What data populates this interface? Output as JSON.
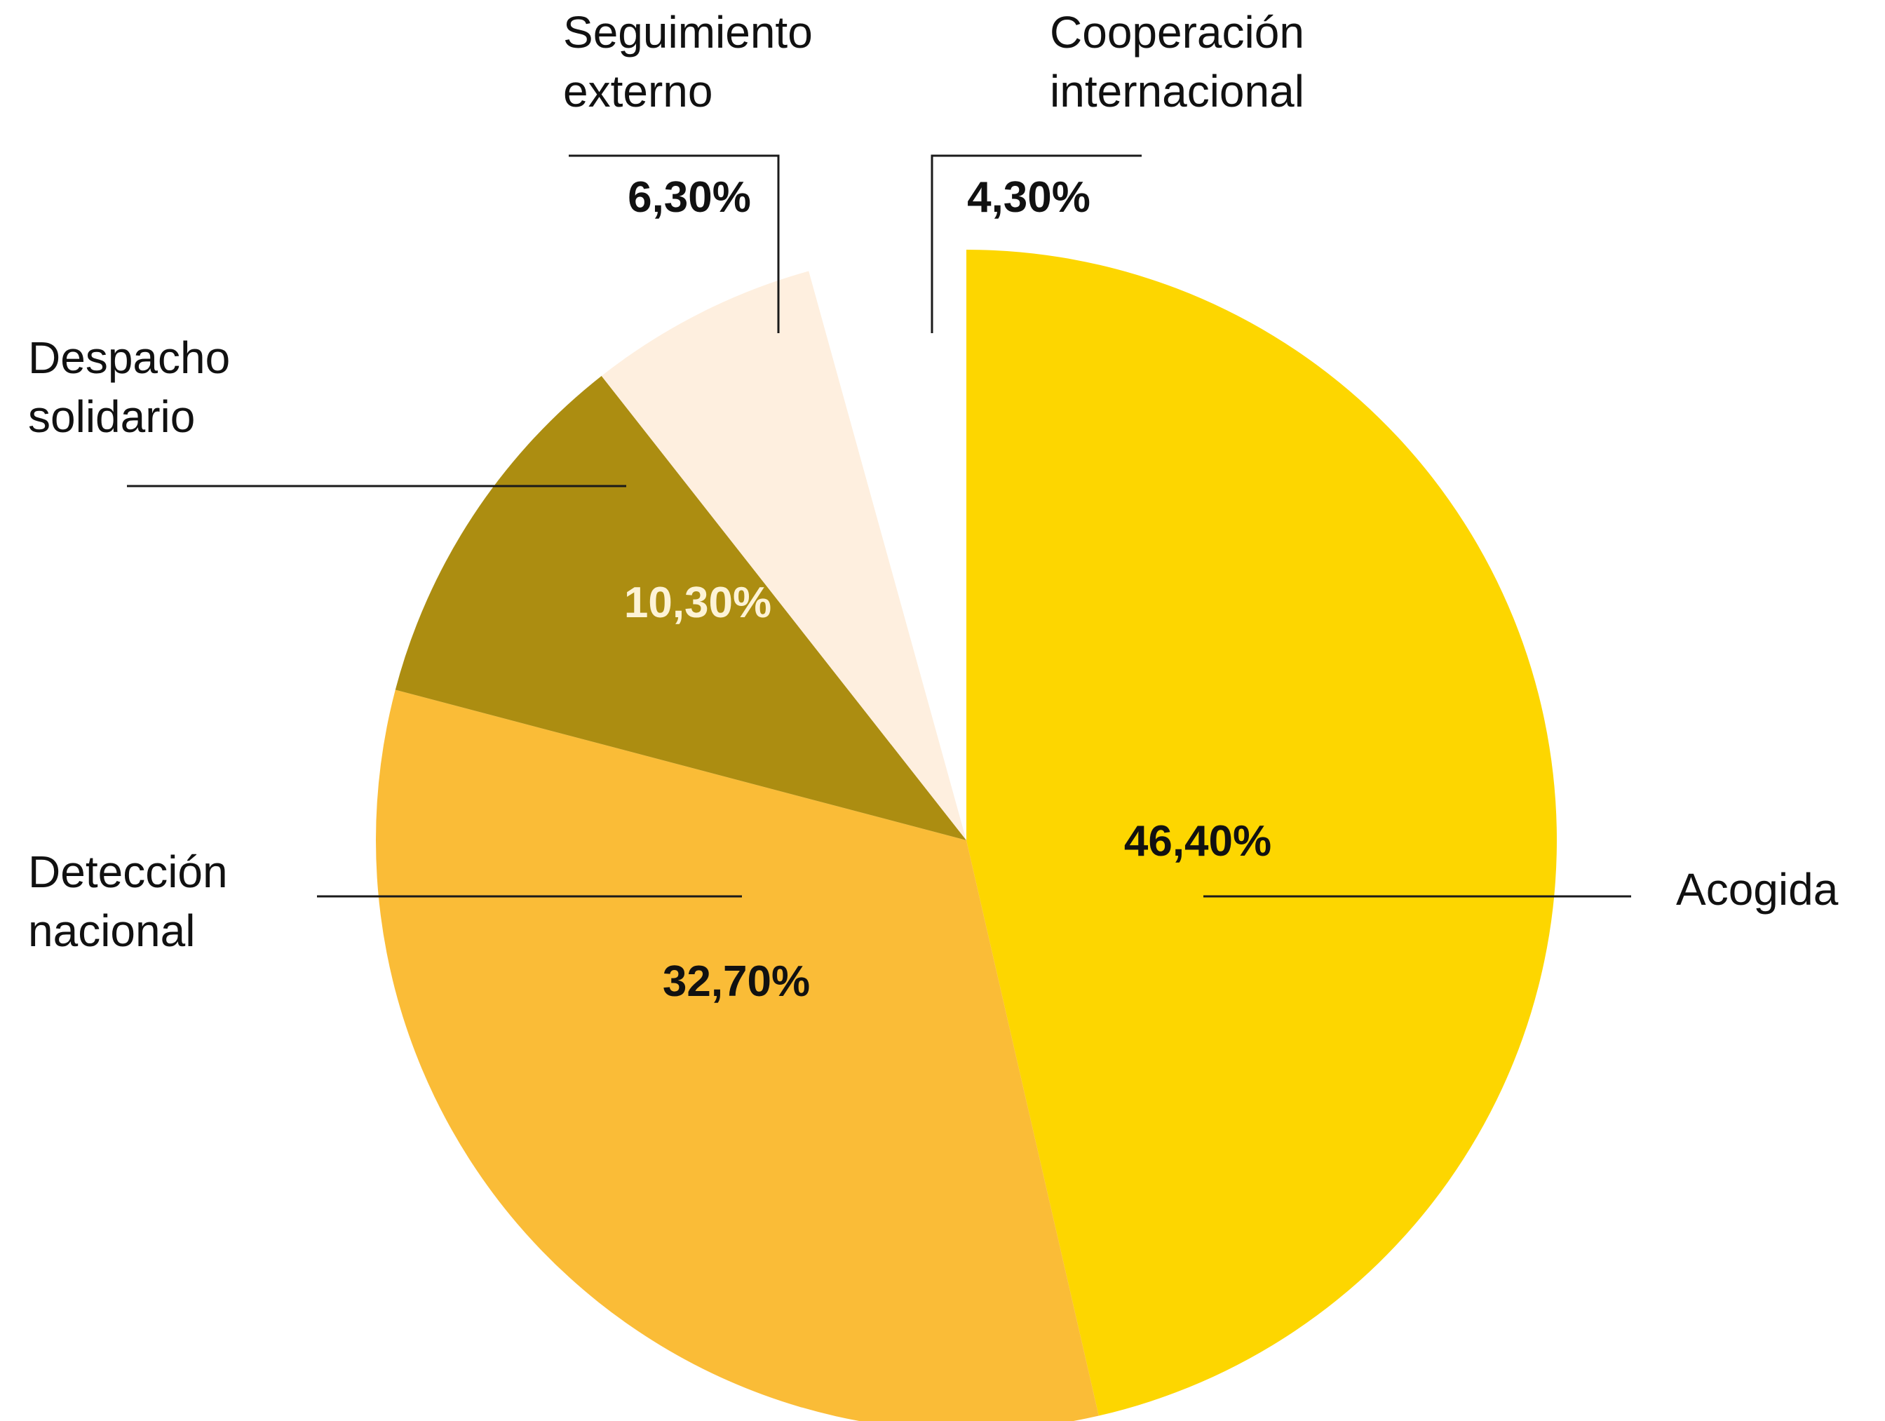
{
  "chart_data": {
    "type": "pie",
    "title": "",
    "slices": [
      {
        "label": "Acogida",
        "label_lines": [
          "Acogida"
        ],
        "value": 46.4,
        "value_text": "46,40%",
        "color": "#FDD600",
        "text_color": "#111111"
      },
      {
        "label": "Detección nacional",
        "label_lines": [
          "Detección",
          "nacional"
        ],
        "value": 32.7,
        "value_text": "32,70%",
        "color": "#FABC37",
        "text_color": "#111111"
      },
      {
        "label": "Despacho solidario",
        "label_lines": [
          "Despacho",
          "solidario"
        ],
        "value": 10.3,
        "value_text": "10,30%",
        "color": "#AC8D11",
        "text_color": "#FDF3D6"
      },
      {
        "label": "Seguimiento externo",
        "label_lines": [
          "Seguimiento",
          "externo"
        ],
        "value": 6.3,
        "value_text": "6,30%",
        "color": "#FEEFDF",
        "text_color": "#111111"
      },
      {
        "label": "Cooperación internacional",
        "label_lines": [
          "Cooperación",
          "internacional"
        ],
        "value": 4.3,
        "value_text": "4,30%",
        "color": "#FFFFFF",
        "text_color": "#111111"
      }
    ],
    "start": "12 o'clock",
    "direction": "clockwise",
    "legend": "none"
  }
}
